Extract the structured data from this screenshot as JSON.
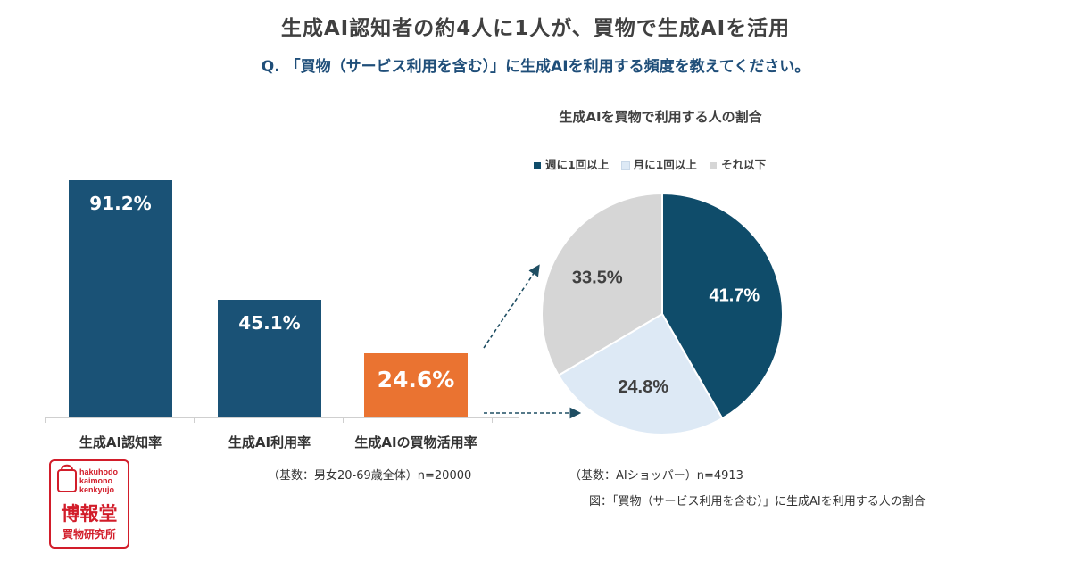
{
  "headline": "生成AI認知者の約4人に1人が、買物で生成AIを活用",
  "question": "Q. 「買物（サービス利用を含む）」に生成AIを利用する頻度を教えてください。",
  "chart_data": [
    {
      "type": "bar",
      "categories": [
        "生成AI認知率",
        "生成AI利用率",
        "生成AIの買物活用率"
      ],
      "values": [
        91.2,
        45.1,
        24.6
      ],
      "value_labels": [
        "91.2%",
        "45.1%",
        "24.6%"
      ],
      "colors": [
        "#1a5276",
        "#1a5276",
        "#ea7331"
      ],
      "highlight_index": 2,
      "unit": "%",
      "ylim": [
        0,
        100
      ],
      "note": "（基数：男女20-69歳全体）n=20000"
    },
    {
      "type": "pie",
      "title": "生成AIを買物で利用する人の割合",
      "labels": [
        "週に1回以上",
        "月に1回以上",
        "それ以下"
      ],
      "values": [
        41.7,
        24.8,
        33.5
      ],
      "value_labels": [
        "41.7%",
        "24.8%",
        "33.5%"
      ],
      "colors": [
        "#0f4c6a",
        "#dde9f5",
        "#d6d6d6"
      ],
      "label_colors": [
        "#ffffff",
        "#404040",
        "#404040"
      ],
      "legend_position": "top",
      "note": "（基数：AIショッパー）n=4913"
    }
  ],
  "caption": "図：「買物（サービス利用を含む）」に生成AIを利用する人の割合",
  "logo": {
    "line1": "hakuhodo",
    "line2": "kaimono",
    "line3": "kenkyujo",
    "name": "博報堂",
    "sub": "買物研究所",
    "color": "#d21d2a"
  }
}
